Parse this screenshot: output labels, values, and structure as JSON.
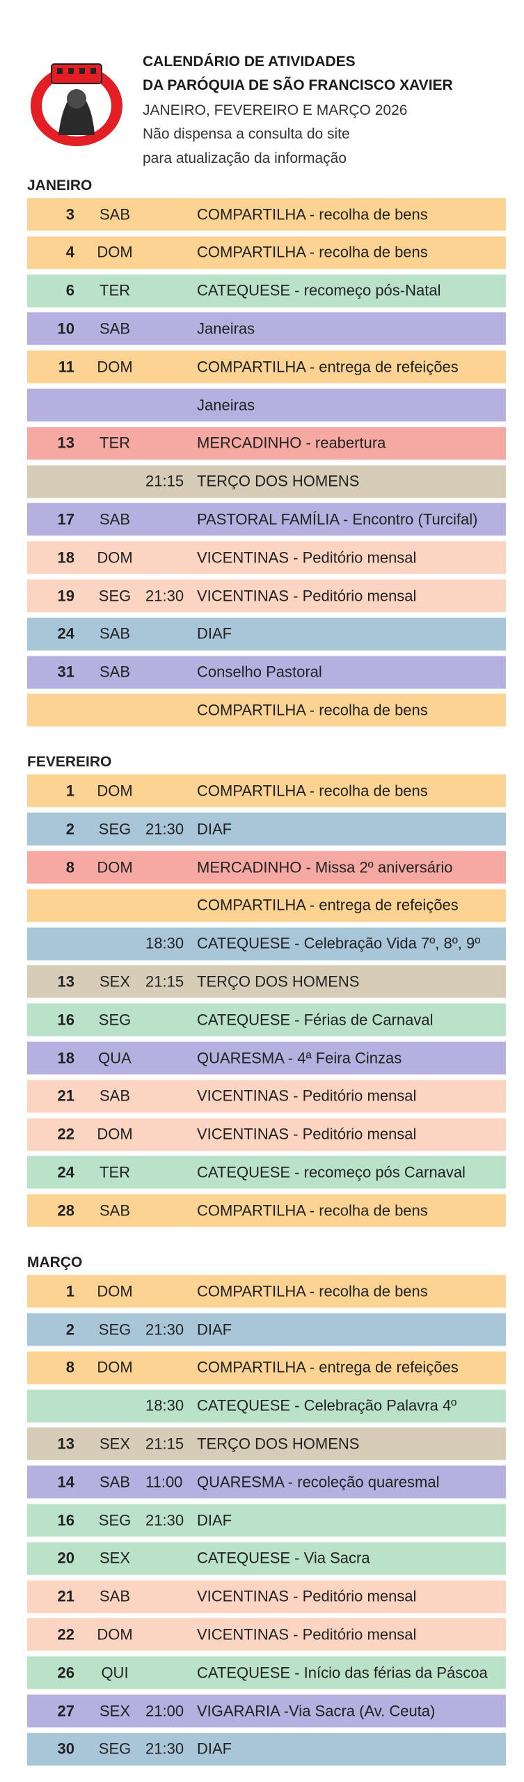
{
  "header": {
    "title_line1": "CALENDÁRIO DE ATIVIDADES",
    "title_line2": "DA PARÓQUIA DE SÃO FRANCISCO XAVIER",
    "period": "JANEIRO, FEVEREIRO E MARÇO 2026",
    "note_line1": "Não dispensa a consulta do site",
    "note_line2": "para atualização da informação"
  },
  "months": [
    {
      "name": "JANEIRO",
      "rows": [
        {
          "day": "3",
          "weekday": "SAB",
          "event": "COMPARTILHA - recolha de bens",
          "color": "#fcd392"
        },
        {
          "day": "4",
          "weekday": "DOM",
          "event": "COMPARTILHA - recolha de bens",
          "color": "#fcd392"
        },
        {
          "day": "6",
          "weekday": "TER",
          "event": "CATEQUESE  - recomeço pós-Natal",
          "color": "#b9e2c8"
        },
        {
          "day": "10",
          "weekday": "SAB",
          "event": "Janeiras",
          "color": "#b5b0e0"
        },
        {
          "day": "11",
          "weekday": "DOM",
          "event": "COMPARTILHA - entrega de refeições",
          "color": "#fcd392"
        },
        {
          "event": "Janeiras",
          "color": "#b5b0e0"
        },
        {
          "day": "13",
          "weekday": "TER",
          "event": "MERCADINHO - reabertura",
          "color": "#f6a9a2"
        },
        {
          "time": "21:15",
          "event": "TERÇO DOS HOMENS",
          "color": "#d6ccb8"
        },
        {
          "day": "17",
          "weekday": "SAB",
          "event": "PASTORAL FAMÍLIA - Encontro (Turcifal)",
          "color": "#b5b0e0"
        },
        {
          "day": "18",
          "weekday": "DOM",
          "event": "VICENTINAS - Peditório mensal",
          "color": "#fcd4c2"
        },
        {
          "day": "19",
          "weekday": "SEG",
          "time": "21:30",
          "event": "VICENTINAS - Peditório mensal",
          "color": "#fcd4c2"
        },
        {
          "day": "24",
          "weekday": "SAB",
          "event": "DIAF",
          "color": "#a9c6d9"
        },
        {
          "day": "31",
          "weekday": "SAB",
          "event": "Conselho Pastoral",
          "color": "#b5b0e0"
        },
        {
          "event": "COMPARTILHA - recolha de bens",
          "color": "#fcd392"
        }
      ]
    },
    {
      "name": "FEVEREIRO",
      "rows": [
        {
          "day": "1",
          "weekday": "DOM",
          "event": "COMPARTILHA - recolha de bens",
          "color": "#fcd392"
        },
        {
          "day": "2",
          "weekday": "SEG",
          "time": "21:30",
          "event": "DIAF",
          "color": "#a9c6d9"
        },
        {
          "day": "8",
          "weekday": "DOM",
          "event": "MERCADINHO - Missa 2º aniversário",
          "color": "#f6a9a2"
        },
        {
          "event": "COMPARTILHA - entrega de refeições",
          "color": "#fcd392"
        },
        {
          "time": "18:30",
          "event": "CATEQUESE  - Celebração Vida  7º, 8º, 9º",
          "color": "#a9c6d9"
        },
        {
          "day": "13",
          "weekday": "SEX",
          "time": "21:15",
          "event": "TERÇO DOS HOMENS",
          "color": "#d6ccb8"
        },
        {
          "day": "16",
          "weekday": "SEG",
          "event": "CATEQUESE  - Férias de Carnaval",
          "color": "#b9e2c8"
        },
        {
          "day": "18",
          "weekday": "QUA",
          "event": "QUARESMA - 4ª Feira Cinzas",
          "color": "#b5b0e0"
        },
        {
          "day": "21",
          "weekday": "SAB",
          "event": "VICENTINAS - Peditório mensal",
          "color": "#fcd4c2"
        },
        {
          "day": "22",
          "weekday": "DOM",
          "event": "VICENTINAS - Peditório mensal",
          "color": "#fcd4c2"
        },
        {
          "day": "24",
          "weekday": "TER",
          "event": "CATEQUESE  - recomeço pós Carnaval",
          "color": "#b9e2c8"
        },
        {
          "day": "28",
          "weekday": "SAB",
          "event": "COMPARTILHA - recolha de bens",
          "color": "#fcd392"
        }
      ]
    },
    {
      "name": "MARÇO",
      "rows": [
        {
          "day": "1",
          "weekday": "DOM",
          "event": "COMPARTILHA - recolha de bens",
          "color": "#fcd392"
        },
        {
          "day": "2",
          "weekday": "SEG",
          "time": "21:30",
          "event": "DIAF",
          "color": "#a9c6d9"
        },
        {
          "day": "8",
          "weekday": "DOM",
          "event": "COMPARTILHA - entrega de refeições",
          "color": "#fcd392"
        },
        {
          "time": "18:30",
          "event": "CATEQUESE  - Celebração Palavra  4º",
          "color": "#b9e2c8"
        },
        {
          "day": "13",
          "weekday": "SEX",
          "time": "21:15",
          "event": "TERÇO DOS HOMENS",
          "color": "#d6ccb8"
        },
        {
          "day": "14",
          "weekday": "SAB",
          "time": "11:00",
          "event": "QUARESMA - recoleção quaresmal",
          "color": "#b5b0e0"
        },
        {
          "day": "16",
          "weekday": "SEG",
          "time": "21:30",
          "event": "DIAF",
          "color": "#b9e2c8"
        },
        {
          "day": "20",
          "weekday": "SEX",
          "event": "CATEQUESE - Via Sacra",
          "color": "#b9e2c8"
        },
        {
          "day": "21",
          "weekday": "SAB",
          "event": "VICENTINAS - Peditório mensal",
          "color": "#fcd4c2"
        },
        {
          "day": "22",
          "weekday": "DOM",
          "event": "VICENTINAS - Peditório mensal",
          "color": "#fcd4c2"
        },
        {
          "day": "26",
          "weekday": "QUI",
          "event": "CATEQUESE  - Início das férias da Páscoa",
          "color": "#b9e2c8"
        },
        {
          "day": "27",
          "weekday": "SEX",
          "time": "21:00",
          "event": "VIGARARIA -Via Sacra (Av. Ceuta)",
          "color": "#b5b0e0"
        },
        {
          "day": "30",
          "weekday": "SEG",
          "time": "21:30",
          "event": "DIAF",
          "color": "#a9c6d9"
        }
      ]
    }
  ]
}
